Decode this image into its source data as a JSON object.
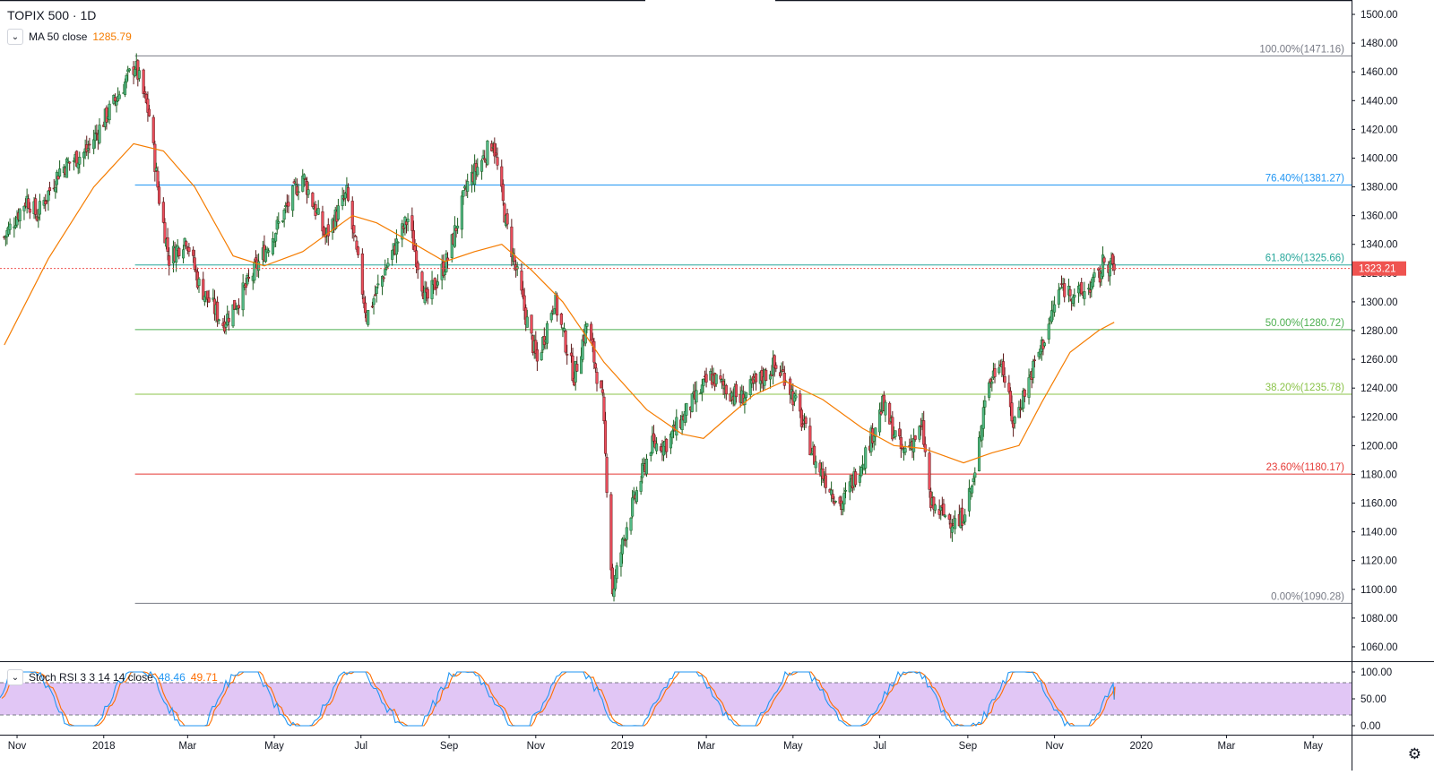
{
  "symbol": {
    "title": "TOPIX 500 · 1D"
  },
  "ma_legend": {
    "collapse_icon": "chevron-down-icon",
    "label": "MA 50 close",
    "value": "1285.79",
    "color": "#f57c00"
  },
  "rsi_legend": {
    "collapse_icon": "chevron-down-icon",
    "label": "Stoch RSI 3 3 14 14 close",
    "k_value": "48.46",
    "d_value": "49.71",
    "k_color": "#2196f3",
    "d_color": "#ff6d00"
  },
  "last_price": {
    "label": "1323.21",
    "color": "#ef5350"
  },
  "settings_icon": "gear-icon",
  "chart_data": {
    "type": "candlestick",
    "price_axis": {
      "range": [
        1050,
        1510
      ],
      "ticks": [
        "1500.00",
        "1480.00",
        "1460.00",
        "1440.00",
        "1420.00",
        "1400.00",
        "1380.00",
        "1360.00",
        "1340.00",
        "1320.00",
        "1300.00",
        "1280.00",
        "1260.00",
        "1240.00",
        "1220.00",
        "1200.00",
        "1180.00",
        "1160.00",
        "1140.00",
        "1120.00",
        "1100.00",
        "1080.00",
        "1060.00"
      ]
    },
    "time_axis": {
      "labels": [
        {
          "text": "Nov",
          "date": "2017-11-01"
        },
        {
          "text": "2018",
          "date": "2018-01-01"
        },
        {
          "text": "Mar",
          "date": "2018-03-01"
        },
        {
          "text": "May",
          "date": "2018-05-01"
        },
        {
          "text": "Jul",
          "date": "2018-07-01"
        },
        {
          "text": "Sep",
          "date": "2018-09-01"
        },
        {
          "text": "Nov",
          "date": "2018-11-01"
        },
        {
          "text": "2019",
          "date": "2019-01-01"
        },
        {
          "text": "Mar",
          "date": "2019-03-01"
        },
        {
          "text": "May",
          "date": "2019-05-01"
        },
        {
          "text": "Jul",
          "date": "2019-07-01"
        },
        {
          "text": "Sep",
          "date": "2019-09-01"
        },
        {
          "text": "Nov",
          "date": "2019-11-01"
        },
        {
          "text": "2020",
          "date": "2020-01-01"
        },
        {
          "text": "Mar",
          "date": "2020-03-01"
        },
        {
          "text": "May",
          "date": "2020-05-01"
        }
      ]
    },
    "fib_levels": [
      {
        "label": "100.00%(1471.16)",
        "value": 1471.16,
        "color": "#787b86"
      },
      {
        "label": "76.40%(1381.27)",
        "value": 1381.27,
        "color": "#2196f3"
      },
      {
        "label": "61.80%(1325.66)",
        "value": 1325.66,
        "color": "#26a69a"
      },
      {
        "label": "50.00%(1280.72)",
        "value": 1280.72,
        "color": "#4caf50"
      },
      {
        "label": "38.20%(1235.78)",
        "value": 1235.78,
        "color": "#8bc34a"
      },
      {
        "label": "23.60%(1180.17)",
        "value": 1180.17,
        "color": "#e53935"
      },
      {
        "label": "0.00%(1090.28)",
        "value": 1090.28,
        "color": "#787b86"
      }
    ],
    "fib_start_date": "2018-01-23",
    "last_date": "2019-12-13",
    "close_path": [
      [
        "2017-10-23",
        1345
      ],
      [
        "2017-11-08",
        1372
      ],
      [
        "2017-11-15",
        1360
      ],
      [
        "2017-12-01",
        1392
      ],
      [
        "2017-12-20",
        1405
      ],
      [
        "2018-01-09",
        1440
      ],
      [
        "2018-01-23",
        1465
      ],
      [
        "2018-02-02",
        1430
      ],
      [
        "2018-02-09",
        1372
      ],
      [
        "2018-02-16",
        1330
      ],
      [
        "2018-02-28",
        1345
      ],
      [
        "2018-03-09",
        1312
      ],
      [
        "2018-03-26",
        1285
      ],
      [
        "2018-04-11",
        1310
      ],
      [
        "2018-05-03",
        1352
      ],
      [
        "2018-05-21",
        1388
      ],
      [
        "2018-06-06",
        1345
      ],
      [
        "2018-06-21",
        1375
      ],
      [
        "2018-07-05",
        1290
      ],
      [
        "2018-07-19",
        1325
      ],
      [
        "2018-08-03",
        1358
      ],
      [
        "2018-08-16",
        1300
      ],
      [
        "2018-08-31",
        1330
      ],
      [
        "2018-09-14",
        1382
      ],
      [
        "2018-10-02",
        1412
      ],
      [
        "2018-10-11",
        1355
      ],
      [
        "2018-10-25",
        1290
      ],
      [
        "2018-11-02",
        1258
      ],
      [
        "2018-11-14",
        1302
      ],
      [
        "2018-11-28",
        1248
      ],
      [
        "2018-12-07",
        1285
      ],
      [
        "2018-12-18",
        1230
      ],
      [
        "2018-12-25",
        1098
      ],
      [
        "2019-01-04",
        1145
      ],
      [
        "2019-01-21",
        1200
      ],
      [
        "2019-02-01",
        1202
      ],
      [
        "2019-02-18",
        1228
      ],
      [
        "2019-03-04",
        1248
      ],
      [
        "2019-03-25",
        1232
      ],
      [
        "2019-04-17",
        1255
      ],
      [
        "2019-04-26",
        1248
      ],
      [
        "2019-05-09",
        1212
      ],
      [
        "2019-05-17",
        1188
      ],
      [
        "2019-06-04",
        1158
      ],
      [
        "2019-06-21",
        1195
      ],
      [
        "2019-07-03",
        1228
      ],
      [
        "2019-07-17",
        1195
      ],
      [
        "2019-07-31",
        1212
      ],
      [
        "2019-08-06",
        1158
      ],
      [
        "2019-08-26",
        1145
      ],
      [
        "2019-09-06",
        1178
      ],
      [
        "2019-09-13",
        1235
      ],
      [
        "2019-09-24",
        1262
      ],
      [
        "2019-10-03",
        1215
      ],
      [
        "2019-10-11",
        1238
      ],
      [
        "2019-10-25",
        1275
      ],
      [
        "2019-11-05",
        1310
      ],
      [
        "2019-11-20",
        1305
      ],
      [
        "2019-12-03",
        1318
      ],
      [
        "2019-12-06",
        1330
      ],
      [
        "2019-12-13",
        1323
      ]
    ],
    "ma50_path": [
      [
        "2017-10-23",
        1270
      ],
      [
        "2017-11-23",
        1330
      ],
      [
        "2017-12-25",
        1380
      ],
      [
        "2018-01-22",
        1410
      ],
      [
        "2018-02-12",
        1405
      ],
      [
        "2018-03-06",
        1380
      ],
      [
        "2018-04-02",
        1332
      ],
      [
        "2018-04-24",
        1325
      ],
      [
        "2018-05-21",
        1335
      ],
      [
        "2018-06-11",
        1350
      ],
      [
        "2018-06-25",
        1360
      ],
      [
        "2018-07-12",
        1355
      ],
      [
        "2018-08-08",
        1340
      ],
      [
        "2018-08-29",
        1328
      ],
      [
        "2018-09-19",
        1335
      ],
      [
        "2018-10-08",
        1340
      ],
      [
        "2018-10-29",
        1322
      ],
      [
        "2018-11-20",
        1300
      ],
      [
        "2018-12-19",
        1258
      ],
      [
        "2019-01-18",
        1225
      ],
      [
        "2019-02-12",
        1208
      ],
      [
        "2019-02-27",
        1205
      ],
      [
        "2019-03-14",
        1218
      ],
      [
        "2019-04-03",
        1235
      ],
      [
        "2019-04-25",
        1245
      ],
      [
        "2019-05-22",
        1232
      ],
      [
        "2019-06-19",
        1212
      ],
      [
        "2019-07-11",
        1200
      ],
      [
        "2019-08-01",
        1198
      ],
      [
        "2019-08-29",
        1188
      ],
      [
        "2019-09-18",
        1195
      ],
      [
        "2019-10-07",
        1200
      ],
      [
        "2019-10-23",
        1230
      ],
      [
        "2019-11-12",
        1265
      ],
      [
        "2019-12-02",
        1280
      ],
      [
        "2019-12-13",
        1285.79
      ]
    ],
    "stoch_rsi": {
      "range": [
        0,
        100
      ],
      "ticks": [
        "100.00",
        "50.00",
        "0.00"
      ],
      "band": [
        20,
        80
      ],
      "k_last": 48.46,
      "d_last": 49.71
    }
  }
}
